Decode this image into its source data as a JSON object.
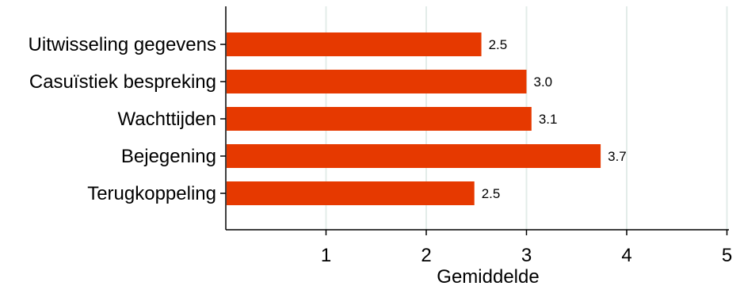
{
  "chart_data": {
    "type": "bar",
    "orientation": "horizontal",
    "categories": [
      "Uitwisseling gegevens",
      "Casuïstiek bespreking",
      "Wachttijden",
      "Bejegening",
      "Terugkoppeling"
    ],
    "values": [
      2.55,
      3.0,
      3.05,
      3.74,
      2.48
    ],
    "value_labels": [
      "2.5",
      "3.0",
      "3.1",
      "3.7",
      "2.5"
    ],
    "xlabel": "Gemiddelde",
    "ylabel": "",
    "xlim": [
      0,
      5
    ],
    "xticks": [
      1,
      2,
      3,
      4,
      5
    ],
    "xtick_labels": [
      "1",
      "2",
      "3",
      "4",
      "5"
    ],
    "grid": "vertical",
    "bar_color": "#e63900",
    "grid_color": "#e3ece9"
  }
}
